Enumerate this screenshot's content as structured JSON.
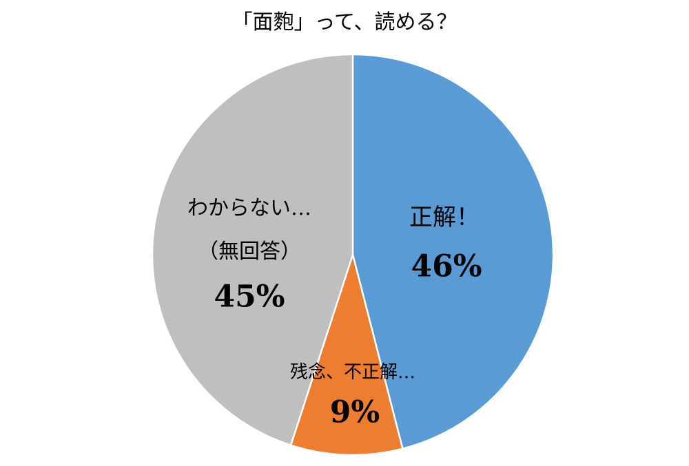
{
  "chart_data": {
    "type": "pie",
    "title": "「面麭」って、読める？",
    "categories": [
      "正解！",
      "残念、不正解…",
      "わからない…\n（無回答）"
    ],
    "values": [
      46,
      9,
      45
    ],
    "value_labels": [
      "46%",
      "9%",
      "45%"
    ],
    "colors": [
      "#5b9bd5",
      "#ed7d31",
      "#bfbfbf"
    ]
  }
}
